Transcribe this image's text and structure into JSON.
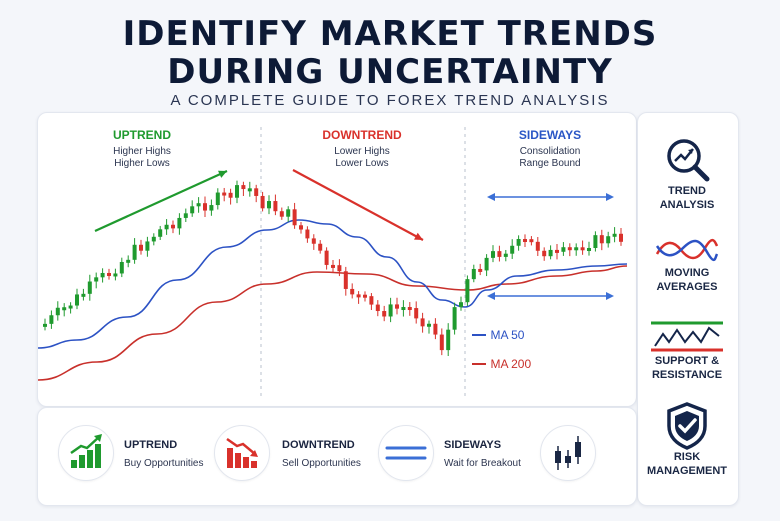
{
  "header": {
    "title_line1": "IDENTIFY MARKET TRENDS",
    "title_line2": "DURING UNCERTAINTY",
    "subtitle": "A COMPLETE GUIDE TO FOREX TREND ANALYSIS"
  },
  "phases": [
    {
      "title": "UPTREND",
      "color": "#1f9a2e",
      "lines": [
        "Higher Highs",
        "Higher Lows"
      ]
    },
    {
      "title": "DOWNTREND",
      "color": "#d9312b",
      "lines": [
        "Lower Highs",
        "Lower Lows"
      ]
    },
    {
      "title": "SIDEWAYS",
      "color": "#2a56c6",
      "lines": [
        "Consolidation",
        "Range Bound"
      ]
    }
  ],
  "legend": {
    "ma50": {
      "label": "MA 50",
      "color": "#2c52c4"
    },
    "ma200": {
      "label": "MA 200",
      "color": "#c8302b"
    }
  },
  "side_panel": [
    {
      "label1": "TREND",
      "label2": "ANALYSIS",
      "icon": "magnifier-trend-icon"
    },
    {
      "label1": "MOVING",
      "label2": "AVERAGES",
      "icon": "moving-averages-icon"
    },
    {
      "label1": "SUPPORT &",
      "label2": "RESISTANCE",
      "icon": "support-resistance-icon"
    },
    {
      "label1": "RISK",
      "label2": "MANAGEMENT",
      "icon": "shield-check-icon"
    }
  ],
  "strategies": [
    {
      "title": "UPTREND",
      "desc": "Buy Opportunities",
      "icon": "green-bars-up-icon"
    },
    {
      "title": "DOWNTREND",
      "desc": "Sell Opportunities",
      "icon": "red-bars-down-icon"
    },
    {
      "title": "SIDEWAYS",
      "desc": "Wait for Breakout",
      "icon": "parallel-lines-icon"
    },
    {
      "title": "",
      "desc": "",
      "icon": "candlesticks-icon"
    }
  ],
  "colors": {
    "up": "#1f9a2e",
    "down": "#d9312b",
    "ma50": "#2c52c4",
    "ma200": "#c8302b",
    "range": "#3b6fd6"
  },
  "chart_data": {
    "type": "candlestick",
    "phases": [
      "UPTREND",
      "DOWNTREND",
      "SIDEWAYS"
    ],
    "series": [
      {
        "name": "MA 50"
      },
      {
        "name": "MA 200"
      }
    ],
    "grid": false
  }
}
